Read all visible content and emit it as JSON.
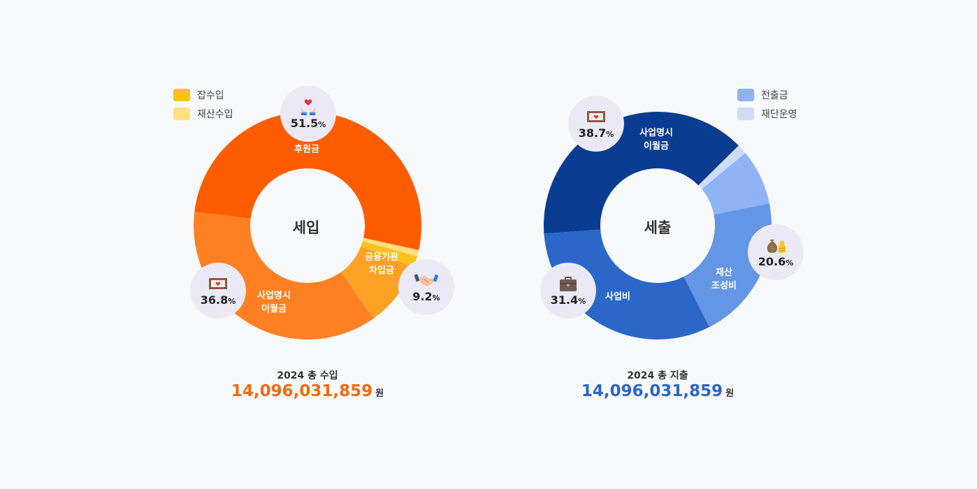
{
  "chart_data": [
    {
      "type": "pie",
      "title": "세입",
      "legend_position": "top-left",
      "slices": [
        {
          "label": "후원금",
          "value": 51.5,
          "color": "#ff5c00"
        },
        {
          "label": "재산수입",
          "value": 0.9,
          "color": "#ffe07a"
        },
        {
          "label": "잡수입",
          "value": 1.6,
          "color": "#ffc21d"
        },
        {
          "label": "금융기관\n차입금",
          "value": 9.2,
          "color": "#ffa125"
        },
        {
          "label": "사업명시\n이월금",
          "value": 36.8,
          "color": "#ff8022"
        }
      ],
      "legend": [
        {
          "label": "잡수입",
          "color": "#ffc21d"
        },
        {
          "label": "재산수입",
          "color": "#ffe07a"
        }
      ],
      "callouts": [
        {
          "pct": "51.5",
          "unit": "%",
          "icon": "hands-heart-icon"
        },
        {
          "pct": "9.2",
          "unit": "%",
          "icon": "handshake-icon"
        },
        {
          "pct": "36.8",
          "unit": "%",
          "icon": "envelope-heart-icon"
        }
      ],
      "total": {
        "title": "2024 총 수입",
        "amount": "14,096,031,859",
        "unit": "원",
        "color": "#f26a10"
      }
    },
    {
      "type": "pie",
      "title": "세출",
      "legend_position": "top-right",
      "slices": [
        {
          "label": "사업명시\n이월금",
          "value": 38.7,
          "color": "#0a3d91"
        },
        {
          "label": "재단운영",
          "value": 1.4,
          "color": "#cfdcf6"
        },
        {
          "label": "전출금",
          "value": 7.9,
          "color": "#8fb3f7"
        },
        {
          "label": "재산\n조성비",
          "value": 20.6,
          "color": "#6396e4"
        },
        {
          "label": "사업비",
          "value": 31.4,
          "color": "#2a67c9"
        }
      ],
      "legend": [
        {
          "label": "전출금",
          "color": "#8fb3f7"
        },
        {
          "label": "재단운영",
          "color": "#cfdcf6"
        }
      ],
      "callouts": [
        {
          "pct": "38.7",
          "unit": "%",
          "icon": "envelope-heart-icon"
        },
        {
          "pct": "20.6",
          "unit": "%",
          "icon": "money-bag-icon"
        },
        {
          "pct": "31.4",
          "unit": "%",
          "icon": "briefcase-icon"
        }
      ],
      "total": {
        "title": "2024 총 지출",
        "amount": "14,096,031,859",
        "unit": "원",
        "color": "#2a67c9"
      }
    }
  ]
}
